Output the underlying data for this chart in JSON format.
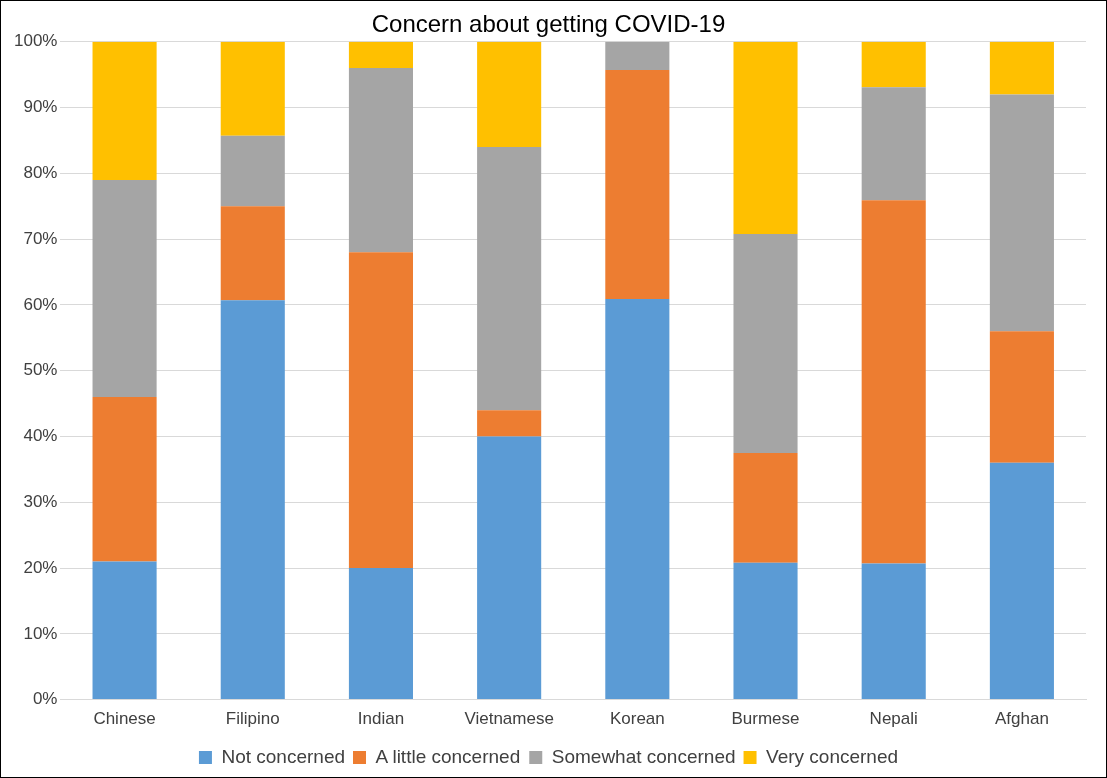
{
  "chart_data": {
    "type": "bar",
    "title": "Concern about getting COVID-19",
    "stacked": true,
    "categories": [
      "Chinese",
      "Filipino",
      "Indian",
      "Vietnamese",
      "Korean",
      "Burmese",
      "Nepali",
      "Afghan"
    ],
    "series": [
      {
        "name": "Not concerned",
        "color": "#5b9bd5",
        "values": [
          21,
          60.7,
          20,
          40,
          60.9,
          20.8,
          20.7,
          36
        ]
      },
      {
        "name": "A little concerned",
        "color": "#ed7d31",
        "values": [
          25,
          14.3,
          48,
          4,
          34.8,
          16.7,
          55.2,
          20
        ]
      },
      {
        "name": "Somewhat concerned",
        "color": "#a5a5a5",
        "values": [
          33,
          10.7,
          28,
          40,
          4.3,
          33.3,
          17.2,
          36
        ]
      },
      {
        "name": "Very concerned",
        "color": "#ffc000",
        "values": [
          21,
          14.3,
          4,
          16,
          0,
          29.2,
          6.9,
          8
        ]
      }
    ],
    "ylim": [
      0,
      100
    ],
    "yticks": [
      {
        "value": 0,
        "label": "0%"
      },
      {
        "value": 10,
        "label": "10%"
      },
      {
        "value": 20,
        "label": "20%"
      },
      {
        "value": 30,
        "label": "30%"
      },
      {
        "value": 40,
        "label": "40%"
      },
      {
        "value": 50,
        "label": "50%"
      },
      {
        "value": 60,
        "label": "60%"
      },
      {
        "value": 70,
        "label": "70%"
      },
      {
        "value": 80,
        "label": "80%"
      },
      {
        "value": 90,
        "label": "90%"
      },
      {
        "value": 100,
        "label": "100%"
      }
    ],
    "grid": "y",
    "legend": "bottom"
  }
}
